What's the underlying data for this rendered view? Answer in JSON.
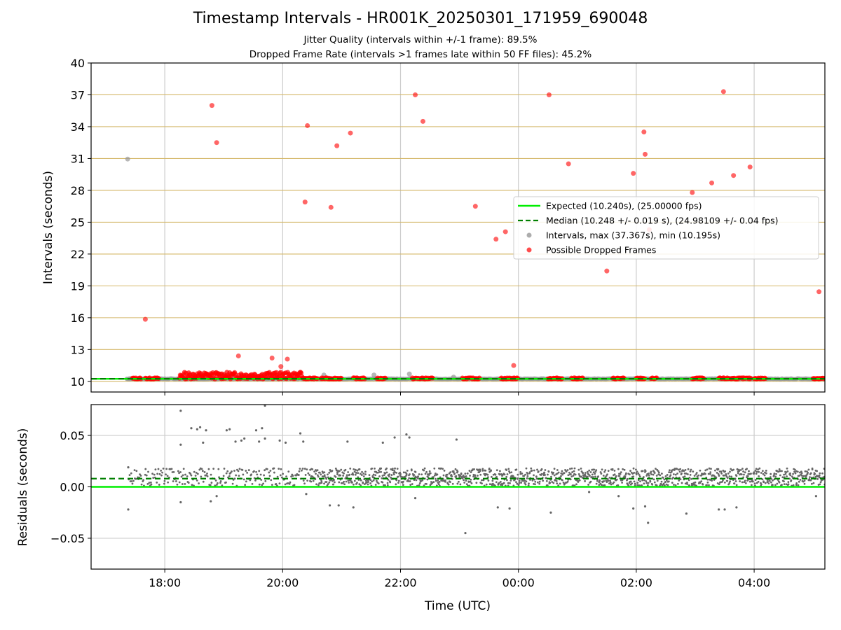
{
  "figure": {
    "title": "Timestamp Intervals - HR001K_20250301_171959_690048",
    "subtitle_1": "Jitter Quality (intervals within +/-1 frame): 89.5%",
    "subtitle_2": "Dropped Frame Rate (intervals >1 frames late within 50 FF files): 45.2%"
  },
  "colors": {
    "expected": "#00ee00",
    "median": "#007f00",
    "interval_points": "#999999",
    "dropped_points": "#ff0000",
    "residual_points": "#666666",
    "horizontal_grid_top": "#d4b86a",
    "vertical_grid": "#cccccc"
  },
  "chart_data": [
    {
      "type": "scatter",
      "panel": "intervals",
      "ylabel": "Intervals (seconds)",
      "ylim": [
        9.0,
        40.0
      ],
      "yticks": [
        10,
        13,
        16,
        19,
        22,
        25,
        28,
        31,
        34,
        37,
        40
      ],
      "ytick_labels": [
        "10",
        "13",
        "16",
        "19",
        "22",
        "25",
        "28",
        "31",
        "34",
        "37",
        "40"
      ],
      "x_units": "hours since 00:00 UTC 2025-03-01",
      "xlim": [
        16.75,
        29.2
      ],
      "grid": "horizontal + vertical",
      "legend_position": "center-right",
      "legend": [
        {
          "label": "Expected (10.240s), (25.00000 fps)",
          "style": "line"
        },
        {
          "label": "Median (10.248 +/- 0.019 s), (24.98109 +/- 0.04 fps)",
          "style": "dashed"
        },
        {
          "label": "Intervals, max (37.367s), min (10.195s)",
          "style": "gray-dot"
        },
        {
          "label": "Possible Dropped Frames",
          "style": "red-dot"
        }
      ],
      "expected_interval": 10.24,
      "median_interval": 10.248,
      "gray_outliers": [
        [
          17.37,
          30.95
        ],
        [
          18.3,
          10.5
        ],
        [
          19.0,
          10.6
        ],
        [
          20.7,
          10.6
        ],
        [
          21.55,
          10.6
        ],
        [
          22.15,
          10.7
        ],
        [
          22.9,
          10.4
        ],
        [
          17.4,
          10.25
        ]
      ],
      "dropped_outliers": [
        [
          17.67,
          15.85
        ],
        [
          18.8,
          36.0
        ],
        [
          18.88,
          32.5
        ],
        [
          19.25,
          12.4
        ],
        [
          19.82,
          12.2
        ],
        [
          19.97,
          11.4
        ],
        [
          20.08,
          12.1
        ],
        [
          20.38,
          26.9
        ],
        [
          20.42,
          34.1
        ],
        [
          20.82,
          26.4
        ],
        [
          20.92,
          32.2
        ],
        [
          21.15,
          33.4
        ],
        [
          22.25,
          37.0
        ],
        [
          22.38,
          34.5
        ],
        [
          23.27,
          26.5
        ],
        [
          23.62,
          23.4
        ],
        [
          23.78,
          24.1
        ],
        [
          23.92,
          11.5
        ],
        [
          24.52,
          37.0
        ],
        [
          24.85,
          30.5
        ],
        [
          25.5,
          20.4
        ],
        [
          25.95,
          29.6
        ],
        [
          26.13,
          33.5
        ],
        [
          26.15,
          31.4
        ],
        [
          26.22,
          24.3
        ],
        [
          26.95,
          27.8
        ],
        [
          27.28,
          28.7
        ],
        [
          27.65,
          29.4
        ],
        [
          27.93,
          30.2
        ],
        [
          27.48,
          37.3
        ],
        [
          29.1,
          18.45
        ]
      ],
      "dropped_band_ranges": [
        [
          17.45,
          17.6
        ],
        [
          17.67,
          17.9
        ],
        [
          18.25,
          20.35
        ],
        [
          20.35,
          20.6
        ],
        [
          20.65,
          21.0
        ],
        [
          21.2,
          21.4
        ],
        [
          21.6,
          21.75
        ],
        [
          22.2,
          22.55
        ],
        [
          23.05,
          23.35
        ],
        [
          23.7,
          24.0
        ],
        [
          24.5,
          24.75
        ],
        [
          24.9,
          25.1
        ],
        [
          25.6,
          25.8
        ],
        [
          26.0,
          26.15
        ],
        [
          26.25,
          26.35
        ],
        [
          26.95,
          27.15
        ],
        [
          27.4,
          27.95
        ],
        [
          28.0,
          28.2
        ],
        [
          29.0,
          29.2
        ]
      ]
    },
    {
      "type": "scatter",
      "panel": "residuals",
      "xlabel": "Time (UTC)",
      "ylabel": "Residuals (seconds)",
      "ylim": [
        -0.08,
        0.08
      ],
      "yticks": [
        0.05,
        0.0,
        -0.05
      ],
      "ytick_labels": [
        "0.05",
        "0.00",
        "−0.05"
      ],
      "xticks": [
        18,
        20,
        22,
        24,
        26,
        28
      ],
      "xtick_labels": [
        "18:00",
        "20:00",
        "22:00",
        "00:00",
        "02:00",
        "04:00"
      ],
      "xlim": [
        16.75,
        29.2
      ],
      "expected_residual": 0.0,
      "median_residual": 0.008,
      "residual_outliers": [
        [
          17.38,
          0.019
        ],
        [
          17.38,
          -0.022
        ],
        [
          18.27,
          0.074
        ],
        [
          18.27,
          0.041
        ],
        [
          18.27,
          -0.015
        ],
        [
          18.45,
          0.057
        ],
        [
          18.55,
          0.056
        ],
        [
          18.6,
          0.058
        ],
        [
          18.65,
          0.043
        ],
        [
          18.7,
          0.055
        ],
        [
          18.78,
          -0.014
        ],
        [
          18.88,
          -0.009
        ],
        [
          19.05,
          0.055
        ],
        [
          19.1,
          0.056
        ],
        [
          19.2,
          0.044
        ],
        [
          19.3,
          0.045
        ],
        [
          19.35,
          0.047
        ],
        [
          19.55,
          0.055
        ],
        [
          19.6,
          0.044
        ],
        [
          19.65,
          0.057
        ],
        [
          19.7,
          0.047
        ],
        [
          19.7,
          0.079
        ],
        [
          19.95,
          0.045
        ],
        [
          20.05,
          0.043
        ],
        [
          20.3,
          0.052
        ],
        [
          20.35,
          0.044
        ],
        [
          20.4,
          -0.007
        ],
        [
          20.8,
          -0.018
        ],
        [
          20.95,
          -0.018
        ],
        [
          21.1,
          0.044
        ],
        [
          21.2,
          -0.02
        ],
        [
          21.7,
          0.043
        ],
        [
          21.9,
          0.048
        ],
        [
          22.1,
          0.051
        ],
        [
          22.15,
          0.048
        ],
        [
          22.25,
          -0.011
        ],
        [
          22.95,
          0.046
        ],
        [
          23.1,
          -0.045
        ],
        [
          23.65,
          -0.02
        ],
        [
          23.85,
          -0.021
        ],
        [
          24.55,
          -0.025
        ],
        [
          25.2,
          -0.005
        ],
        [
          25.7,
          -0.009
        ],
        [
          25.95,
          -0.021
        ],
        [
          26.15,
          -0.019
        ],
        [
          26.2,
          -0.035
        ],
        [
          26.85,
          -0.026
        ],
        [
          27.4,
          -0.022
        ],
        [
          27.5,
          -0.022
        ],
        [
          27.7,
          -0.02
        ],
        [
          29.05,
          -0.009
        ]
      ]
    }
  ]
}
